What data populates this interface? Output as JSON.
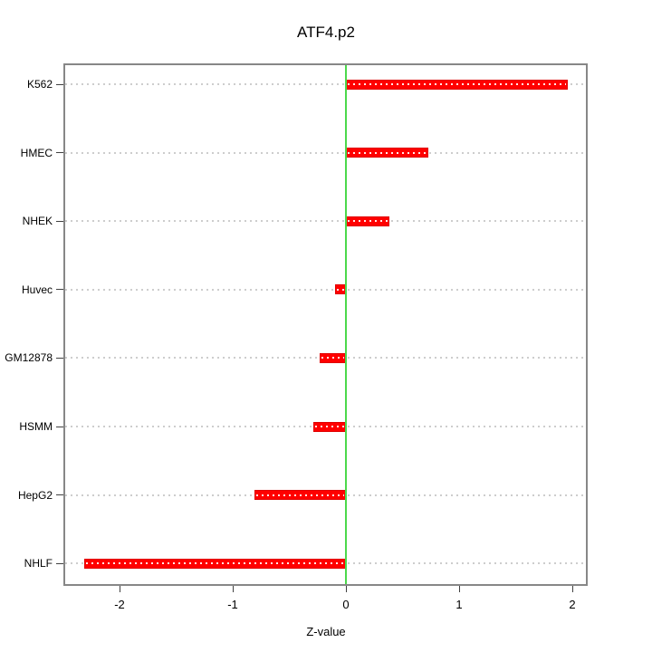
{
  "chart_data": {
    "type": "bar",
    "orientation": "horizontal",
    "title": "ATF4.p2",
    "xlabel": "Z-value",
    "ylabel": "",
    "categories": [
      "K562",
      "HMEC",
      "NHEK",
      "Huvec",
      "GM12878",
      "HSMM",
      "HepG2",
      "NHLF"
    ],
    "values": [
      1.96,
      0.73,
      0.38,
      -0.1,
      -0.23,
      -0.29,
      -0.81,
      -2.31
    ],
    "x_ticks": [
      -2,
      -1,
      0,
      1,
      2
    ],
    "xlim": [
      -2.48,
      2.12
    ],
    "grid": "horizontal-dotted",
    "zero_line_x": 0,
    "legend": "none",
    "colors": {
      "bar_fill": "#ff0000",
      "bar_border": "#e00000",
      "zero_line": "#4cd94c",
      "gridline": "#cdcdcd",
      "plot_border": "#878787",
      "tick": "#404040",
      "text": "#000000",
      "background": "#ffffff"
    }
  }
}
